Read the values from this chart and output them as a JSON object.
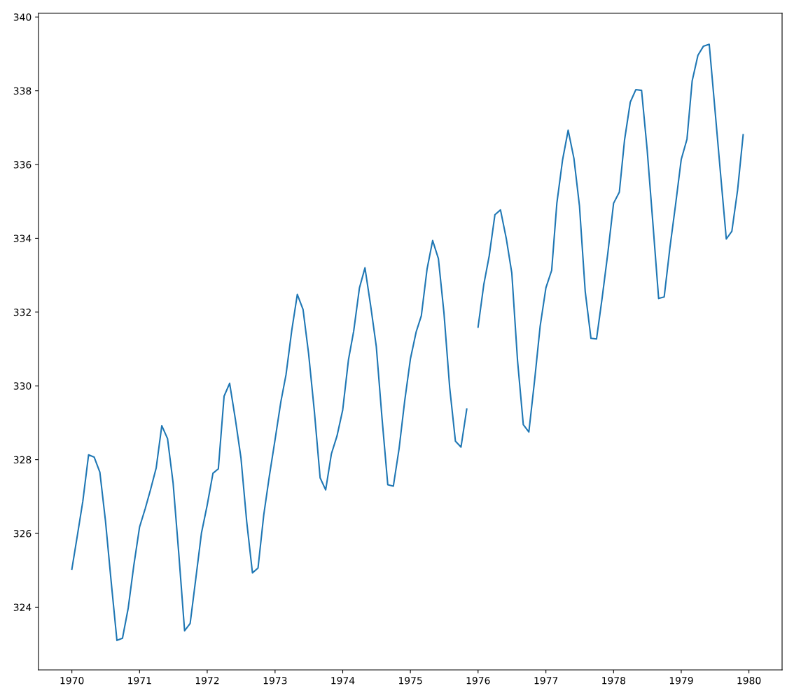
{
  "chart_data": {
    "type": "line",
    "color": "#1f77b4",
    "line_style": "solid",
    "marker": "none",
    "grid": false,
    "legend": false,
    "x": [
      "1970-01",
      "1970-02",
      "1970-03",
      "1970-04",
      "1970-05",
      "1970-06",
      "1970-07",
      "1970-08",
      "1970-09",
      "1970-10",
      "1970-11",
      "1970-12",
      "1971-01",
      "1971-02",
      "1971-03",
      "1971-04",
      "1971-05",
      "1971-06",
      "1971-07",
      "1971-08",
      "1971-09",
      "1971-10",
      "1971-11",
      "1971-12",
      "1972-01",
      "1972-02",
      "1972-03",
      "1972-04",
      "1972-05",
      "1972-06",
      "1972-07",
      "1972-08",
      "1972-09",
      "1972-10",
      "1972-11",
      "1972-12",
      "1973-01",
      "1973-02",
      "1973-03",
      "1973-04",
      "1973-05",
      "1973-06",
      "1973-07",
      "1973-08",
      "1973-09",
      "1973-10",
      "1973-11",
      "1973-12",
      "1974-01",
      "1974-02",
      "1974-03",
      "1974-04",
      "1974-05",
      "1974-06",
      "1974-07",
      "1974-08",
      "1974-09",
      "1974-10",
      "1974-11",
      "1974-12",
      "1975-01",
      "1975-02",
      "1975-03",
      "1975-04",
      "1975-05",
      "1975-06",
      "1975-07",
      "1975-08",
      "1975-09",
      "1975-10",
      "1975-11",
      "1975-12",
      "1976-01",
      "1976-02",
      "1976-03",
      "1976-04",
      "1976-05",
      "1976-06",
      "1976-07",
      "1976-08",
      "1976-09",
      "1976-10",
      "1976-11",
      "1976-12",
      "1977-01",
      "1977-02",
      "1977-03",
      "1977-04",
      "1977-05",
      "1977-06",
      "1977-07",
      "1977-08",
      "1977-09",
      "1977-10",
      "1977-11",
      "1977-12",
      "1978-01",
      "1978-02",
      "1978-03",
      "1978-04",
      "1978-05",
      "1978-06",
      "1978-07",
      "1978-08",
      "1978-09",
      "1978-10",
      "1978-11",
      "1978-12",
      "1979-01",
      "1979-02",
      "1979-03",
      "1979-04",
      "1979-05",
      "1979-06",
      "1979-07",
      "1979-08",
      "1979-09",
      "1979-10",
      "1979-11",
      "1979-12"
    ],
    "values": [
      325.03,
      325.99,
      326.87,
      328.13,
      328.07,
      327.66,
      326.35,
      324.69,
      323.1,
      323.16,
      323.98,
      325.13,
      326.17,
      326.68,
      327.18,
      327.78,
      328.92,
      328.57,
      327.37,
      325.43,
      323.36,
      323.56,
      324.8,
      326.01,
      326.77,
      327.63,
      327.75,
      329.72,
      330.07,
      329.09,
      328.05,
      326.32,
      324.93,
      325.06,
      326.5,
      327.55,
      328.54,
      329.56,
      330.3,
      331.5,
      332.48,
      332.07,
      330.87,
      329.31,
      327.51,
      327.18,
      328.16,
      328.64,
      329.35,
      330.71,
      331.48,
      332.65,
      333.2,
      332.16,
      331.07,
      329.12,
      327.32,
      327.28,
      328.3,
      329.58,
      330.73,
      331.46,
      331.9,
      333.17,
      333.94,
      333.45,
      331.98,
      329.95,
      328.5,
      328.34,
      329.37,
      null,
      331.59,
      332.75,
      333.52,
      334.64,
      334.77,
      334.0,
      333.06,
      330.68,
      328.95,
      328.75,
      330.15,
      331.62,
      332.66,
      333.13,
      334.95,
      336.13,
      336.93,
      336.17,
      334.88,
      332.56,
      331.29,
      331.27,
      332.41,
      333.6,
      334.95,
      335.25,
      336.66,
      337.69,
      338.03,
      338.01,
      336.41,
      334.41,
      332.37,
      332.41,
      333.75,
      334.9,
      336.14,
      336.69,
      338.27,
      338.96,
      339.21,
      339.26,
      337.54,
      335.75,
      333.98,
      334.19,
      335.31,
      336.81
    ],
    "xlim": [
      "1969-07-05",
      "1980-06-28"
    ],
    "xticks": [
      {
        "value": "1970-01-01",
        "label": "1970"
      },
      {
        "value": "1971-01-01",
        "label": "1971"
      },
      {
        "value": "1972-01-01",
        "label": "1972"
      },
      {
        "value": "1973-01-01",
        "label": "1973"
      },
      {
        "value": "1974-01-01",
        "label": "1974"
      },
      {
        "value": "1975-01-01",
        "label": "1975"
      },
      {
        "value": "1976-01-01",
        "label": "1976"
      },
      {
        "value": "1977-01-01",
        "label": "1977"
      },
      {
        "value": "1978-01-01",
        "label": "1978"
      },
      {
        "value": "1979-01-01",
        "label": "1979"
      },
      {
        "value": "1980-01-01",
        "label": "1980"
      }
    ],
    "ylim": [
      322.3,
      340.1
    ],
    "yticks": [
      324,
      326,
      328,
      330,
      332,
      334,
      336,
      338,
      340
    ]
  }
}
